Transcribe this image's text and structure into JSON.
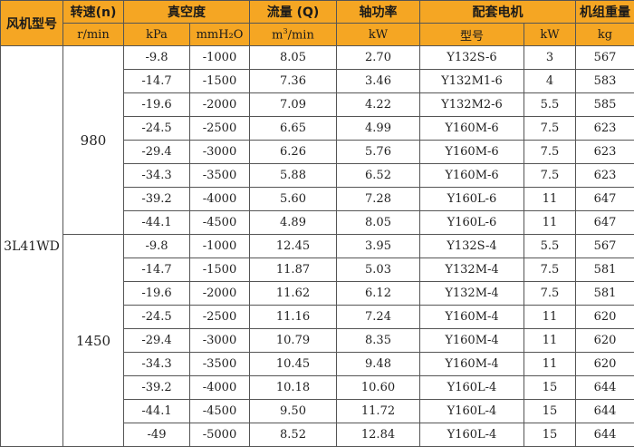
{
  "header": {
    "model_col": "风机型号",
    "speed": "转速(n)",
    "vacuum": "真空度",
    "flow": "流量 (Q)",
    "shaft_power": "轴功率",
    "motor": "配套电机",
    "weight": "机组重量",
    "speed_unit": "r/min",
    "kpa_unit": "kPa",
    "mmh2o_unit": "mmH₂O",
    "flow_unit_base": "m",
    "flow_unit_sup": "3",
    "flow_unit_rest": "/min",
    "power_unit": "kW",
    "motor_model": "型号",
    "motor_kw": "kW",
    "weight_unit": "kg"
  },
  "model": "3L41WD",
  "groups": [
    {
      "speed": "980",
      "rows": [
        {
          "kpa": "-9.8",
          "mmh2o": "-1000",
          "flow": "8.05",
          "power": "2.70",
          "motor": "Y132S-6",
          "motor_kw": "3",
          "weight": "567"
        },
        {
          "kpa": "-14.7",
          "mmh2o": "-1500",
          "flow": "7.36",
          "power": "3.46",
          "motor": "Y132M1-6",
          "motor_kw": "4",
          "weight": "583"
        },
        {
          "kpa": "-19.6",
          "mmh2o": "-2000",
          "flow": "7.09",
          "power": "4.22",
          "motor": "Y132M2-6",
          "motor_kw": "5.5",
          "weight": "585"
        },
        {
          "kpa": "-24.5",
          "mmh2o": "-2500",
          "flow": "6.65",
          "power": "4.99",
          "motor": "Y160M-6",
          "motor_kw": "7.5",
          "weight": "623"
        },
        {
          "kpa": "-29.4",
          "mmh2o": "-3000",
          "flow": "6.26",
          "power": "5.76",
          "motor": "Y160M-6",
          "motor_kw": "7.5",
          "weight": "623"
        },
        {
          "kpa": "-34.3",
          "mmh2o": "-3500",
          "flow": "5.88",
          "power": "6.52",
          "motor": "Y160M-6",
          "motor_kw": "7.5",
          "weight": "623"
        },
        {
          "kpa": "-39.2",
          "mmh2o": "-4000",
          "flow": "5.60",
          "power": "7.28",
          "motor": "Y160L-6",
          "motor_kw": "11",
          "weight": "647"
        },
        {
          "kpa": "-44.1",
          "mmh2o": "-4500",
          "flow": "4.89",
          "power": "8.05",
          "motor": "Y160L-6",
          "motor_kw": "11",
          "weight": "647"
        }
      ]
    },
    {
      "speed": "1450",
      "rows": [
        {
          "kpa": "-9.8",
          "mmh2o": "-1000",
          "flow": "12.45",
          "power": "3.95",
          "motor": "Y132S-4",
          "motor_kw": "5.5",
          "weight": "567"
        },
        {
          "kpa": "-14.7",
          "mmh2o": "-1500",
          "flow": "11.87",
          "power": "5.03",
          "motor": "Y132M-4",
          "motor_kw": "7.5",
          "weight": "581"
        },
        {
          "kpa": "-19.6",
          "mmh2o": "-2000",
          "flow": "11.62",
          "power": "6.12",
          "motor": "Y132M-4",
          "motor_kw": "7.5",
          "weight": "581"
        },
        {
          "kpa": "-24.5",
          "mmh2o": "-2500",
          "flow": "11.16",
          "power": "7.24",
          "motor": "Y160M-4",
          "motor_kw": "11",
          "weight": "620"
        },
        {
          "kpa": "-29.4",
          "mmh2o": "-3000",
          "flow": "10.79",
          "power": "8.35",
          "motor": "Y160M-4",
          "motor_kw": "11",
          "weight": "620"
        },
        {
          "kpa": "-34.3",
          "mmh2o": "-3500",
          "flow": "10.45",
          "power": "9.48",
          "motor": "Y160M-4",
          "motor_kw": "11",
          "weight": "620"
        },
        {
          "kpa": "-39.2",
          "mmh2o": "-4000",
          "flow": "10.18",
          "power": "10.60",
          "motor": "Y160L-4",
          "motor_kw": "15",
          "weight": "644"
        },
        {
          "kpa": "-44.1",
          "mmh2o": "-4500",
          "flow": "9.50",
          "power": "11.72",
          "motor": "Y160L-4",
          "motor_kw": "15",
          "weight": "644"
        },
        {
          "kpa": "-49",
          "mmh2o": "-5000",
          "flow": "8.52",
          "power": "12.84",
          "motor": "Y160L-4",
          "motor_kw": "15",
          "weight": "644"
        }
      ]
    }
  ]
}
